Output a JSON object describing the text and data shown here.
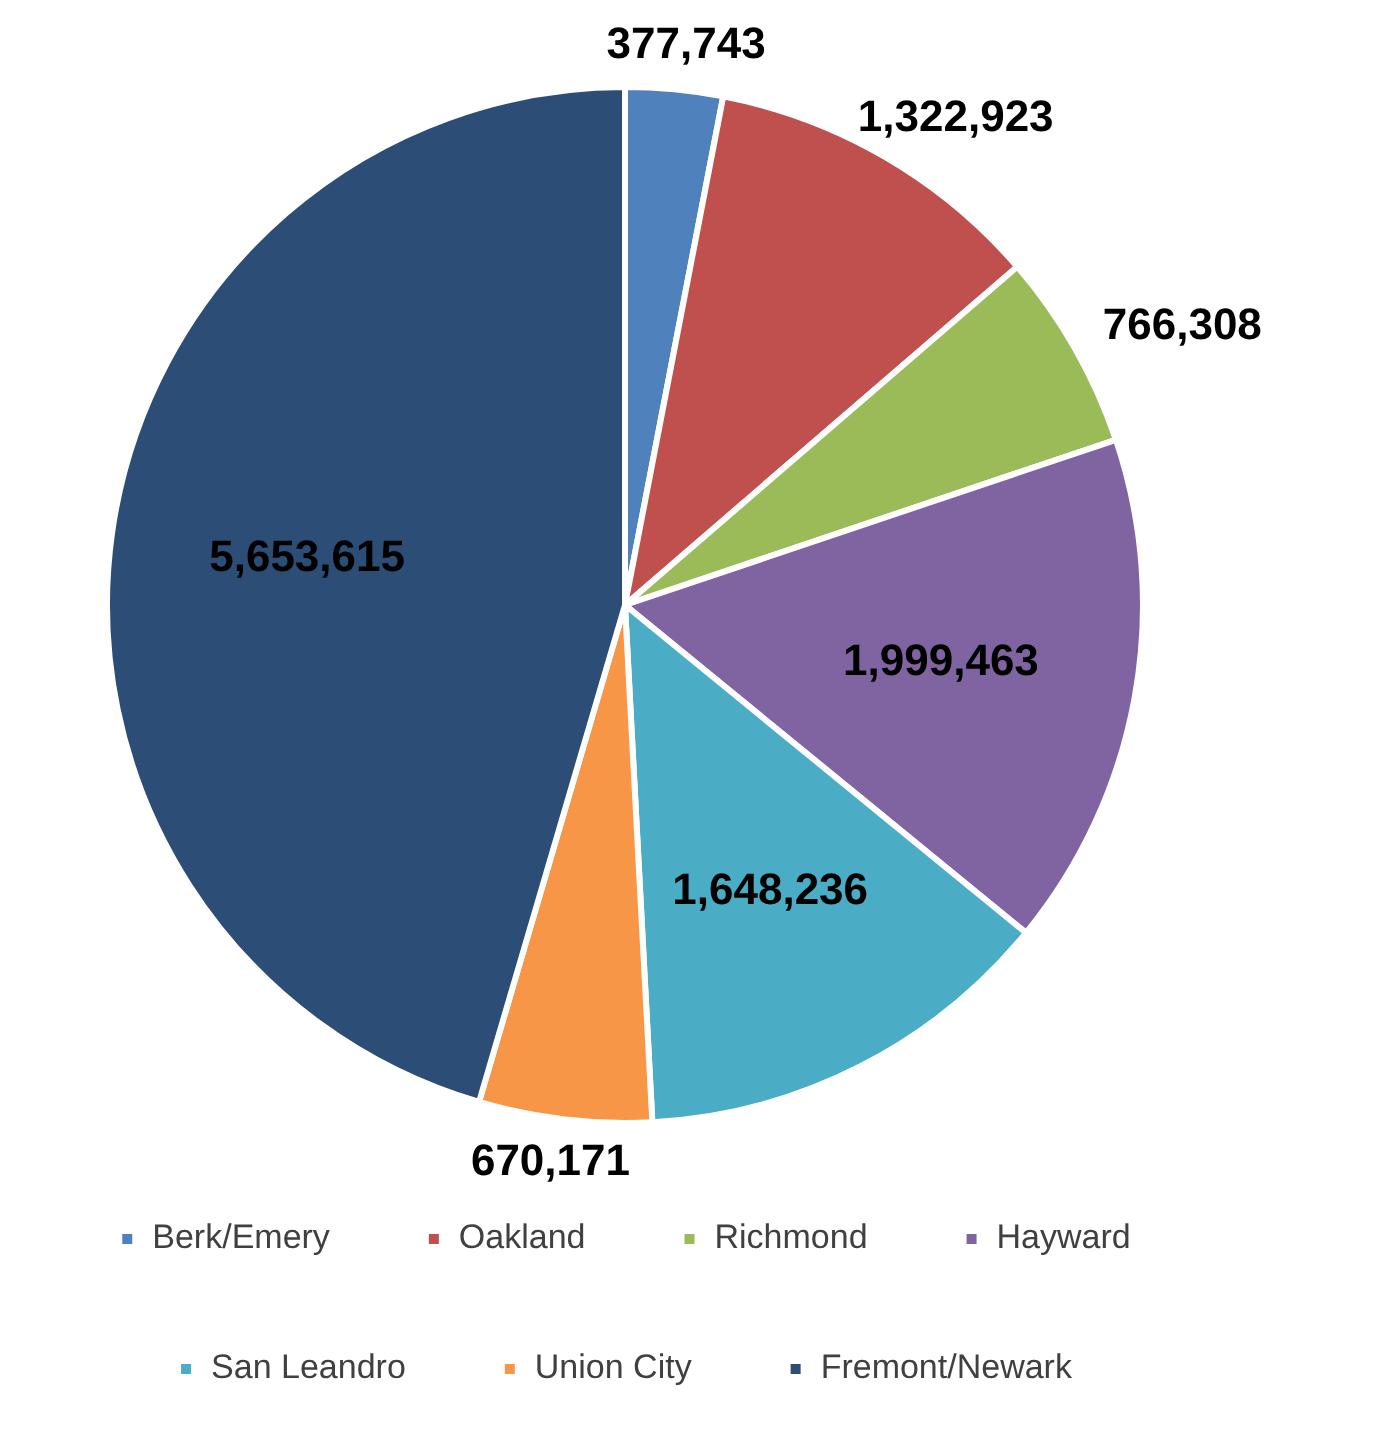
{
  "chart_data": {
    "type": "pie",
    "categories": [
      "Berk/Emery",
      "Oakland",
      "Richmond",
      "Hayward",
      "San Leandro",
      "Union City",
      "Fremont/Newark"
    ],
    "values": [
      377743,
      1322923,
      766308,
      1999463,
      1648236,
      670171,
      5653615
    ],
    "colors": [
      "#4f81bd",
      "#c0504d",
      "#9bbb59",
      "#8064a2",
      "#4bacc6",
      "#f79646",
      "#2c4d75"
    ],
    "value_labels": [
      "377,743",
      "1,322,923",
      "766,308",
      "1,999,463",
      "1,648,236",
      "670,171",
      "5,653,615"
    ],
    "legend": "bottom"
  }
}
